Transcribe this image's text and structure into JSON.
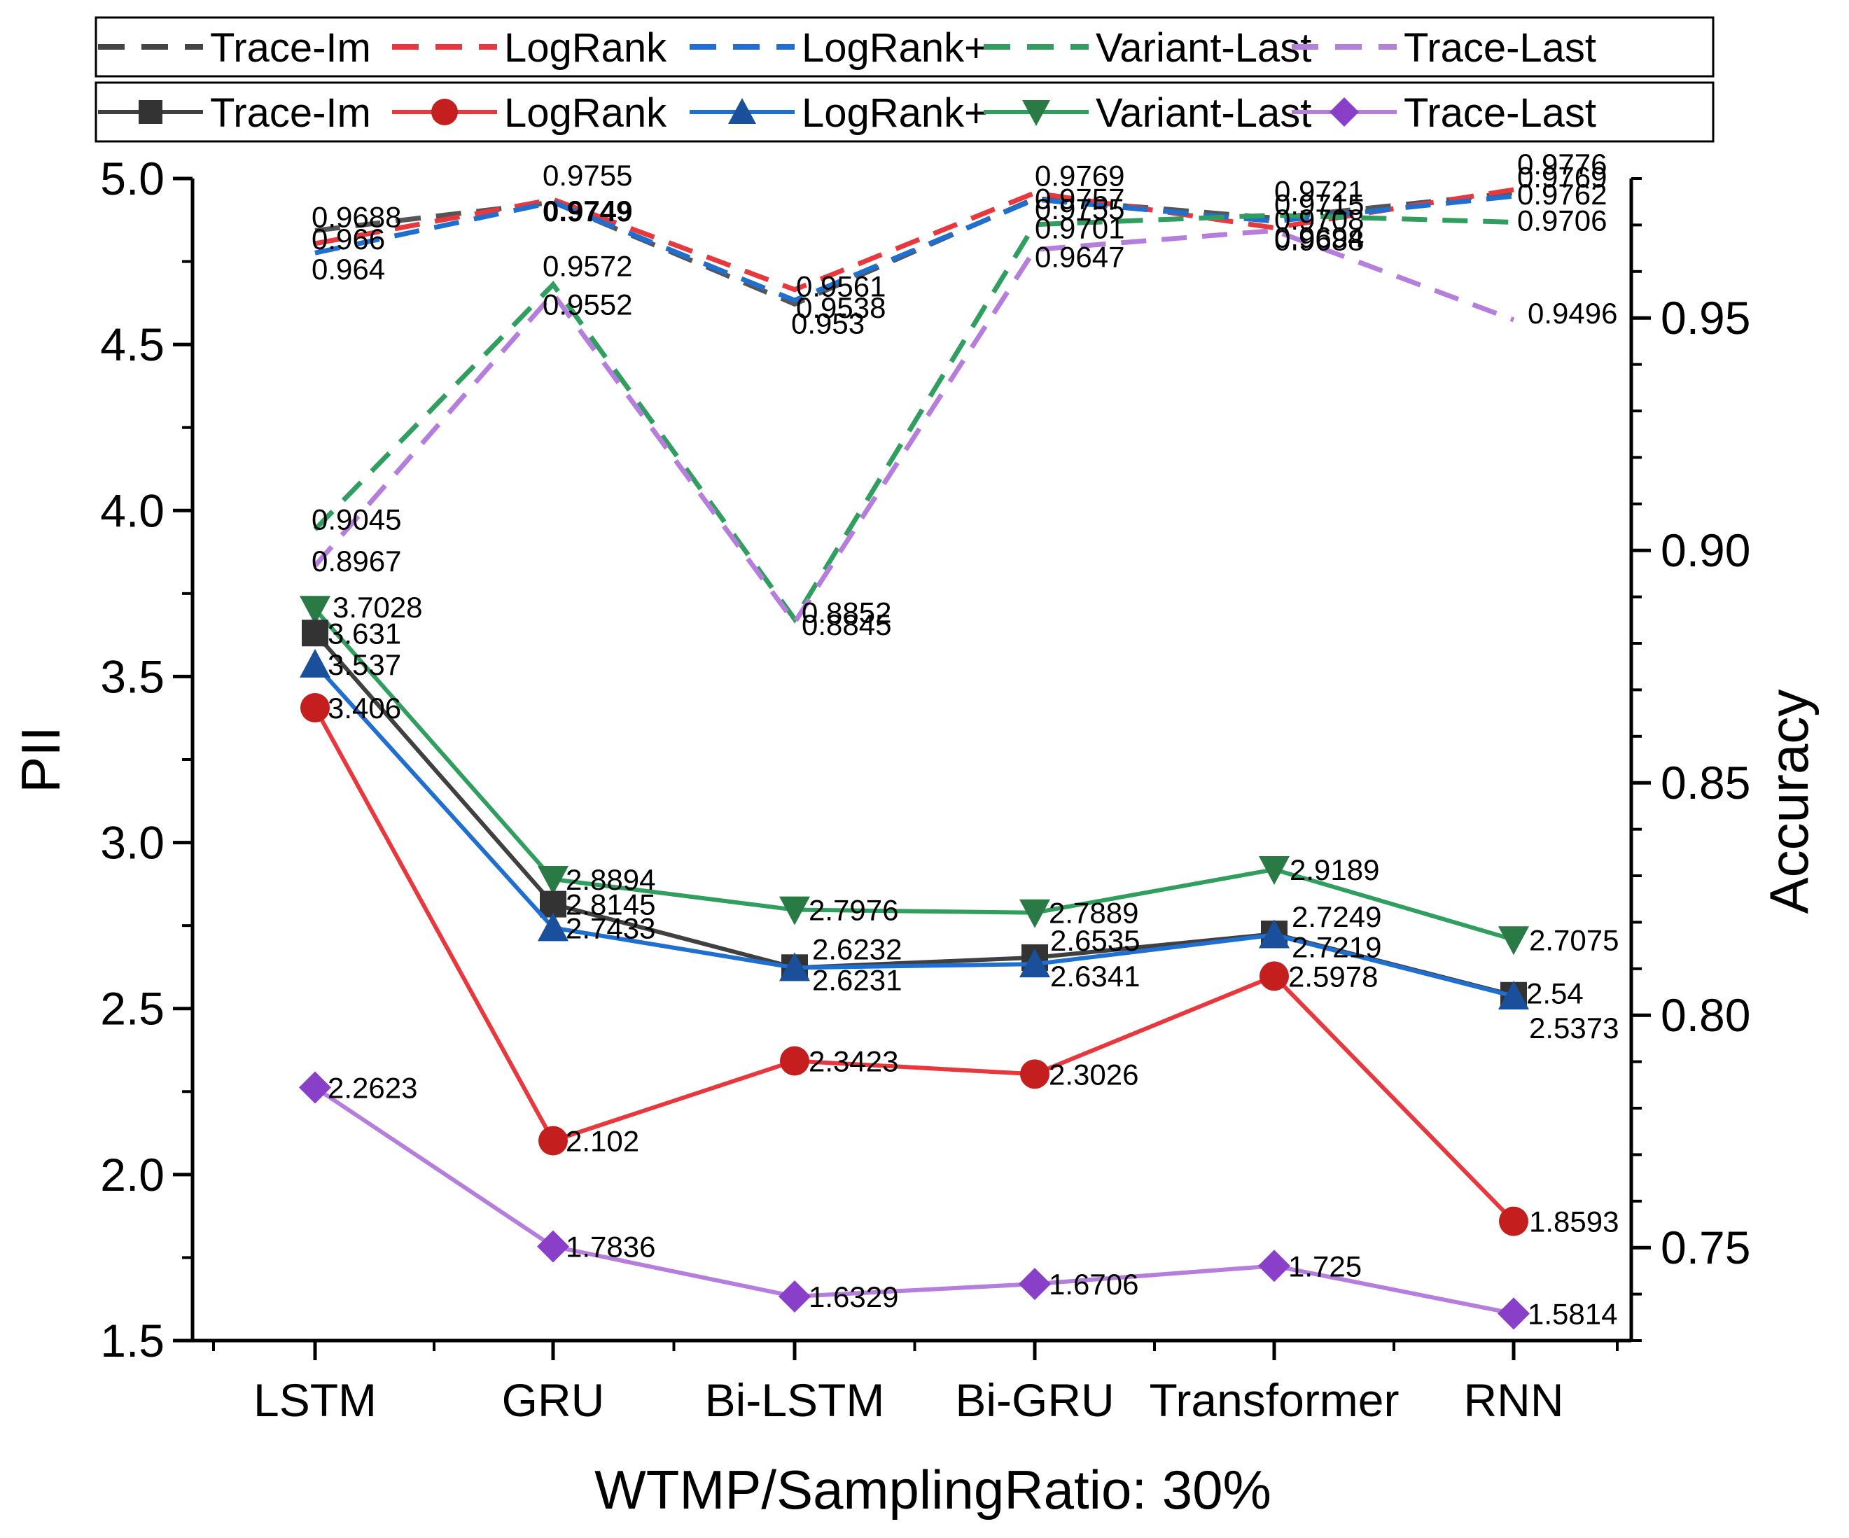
{
  "chart_data": {
    "type": "line",
    "xlabel": "WTMP/SamplingRatio: 30%",
    "ylabel": "PII",
    "y2label": "Accuracy",
    "categories": [
      "LSTM",
      "GRU",
      "Bi-LSTM",
      "Bi-GRU",
      "Transformer",
      "RNN"
    ],
    "ylim": [
      1.5,
      5.0
    ],
    "y2lim": [
      0.73,
      0.98
    ],
    "yticks": [
      "1.5",
      "2.0",
      "2.5",
      "3.0",
      "3.5",
      "4.0",
      "4.5",
      "5.0"
    ],
    "y2ticks": [
      "0.75",
      "0.80",
      "0.85",
      "0.90",
      "0.95"
    ],
    "pii_series": [
      {
        "name": "Trace-Im",
        "color": "#404040",
        "marker": "square",
        "values": [
          3.631,
          2.8145,
          2.6232,
          2.6535,
          2.7249,
          2.54
        ],
        "labels": [
          "3.631",
          "2.8145",
          "2.6232",
          "2.6535",
          "2.7249",
          "2.54"
        ]
      },
      {
        "name": "LogRank",
        "color": "#e8383d",
        "marker": "circle",
        "values": [
          3.406,
          2.102,
          2.3423,
          2.3026,
          2.5978,
          1.8593
        ],
        "labels": [
          "3.406",
          "2.102",
          "2.3423",
          "2.3026",
          "2.5978",
          "1.8593"
        ]
      },
      {
        "name": "LogRank+",
        "color": "#1f6fd1",
        "marker": "triangle-up",
        "values": [
          3.537,
          2.7433,
          2.6231,
          2.6341,
          2.7219,
          2.5373
        ],
        "labels": [
          "3.537",
          "2.7433",
          "2.6231",
          "2.6341",
          "2.7219",
          "2.5373"
        ]
      },
      {
        "name": "Variant-Last",
        "color": "#2f9e5e",
        "marker": "triangle-down",
        "values": [
          3.7028,
          2.8894,
          2.7976,
          2.7889,
          2.9189,
          2.7075
        ],
        "labels": [
          "3.7028",
          "2.8894",
          "2.7976",
          "2.7889",
          "2.9189",
          "2.7075"
        ]
      },
      {
        "name": "Trace-Last",
        "color": "#b57edc",
        "marker": "diamond",
        "values": [
          2.2623,
          1.7836,
          1.6329,
          1.6706,
          1.725,
          1.5814
        ],
        "labels": [
          "2.2623",
          "1.7836",
          "1.6329",
          "1.6706",
          "1.725",
          "1.5814"
        ]
      }
    ],
    "accuracy_series": [
      {
        "name": "Trace-Im",
        "color": "#555555",
        "values": [
          0.9688,
          0.9749,
          0.953,
          0.9757,
          0.9715,
          0.9769
        ],
        "labels": [
          "0.9688",
          "0.9749",
          "0.953",
          "0.9757",
          "0.9715",
          "0.9769"
        ]
      },
      {
        "name": "LogRank",
        "color": "#e8383d",
        "values": [
          0.966,
          0.9755,
          0.9561,
          0.9769,
          0.9694,
          0.9776
        ],
        "labels": [
          "0.966",
          "0.9755",
          "0.9561",
          "0.9769",
          "0.9694",
          "0.9776"
        ]
      },
      {
        "name": "LogRank+",
        "color": "#1f6fd1",
        "values": [
          0.964,
          0.9749,
          0.9538,
          0.9755,
          0.9708,
          0.9762
        ],
        "labels": [
          "0.964",
          "0.9749",
          "0.9538",
          "0.9755",
          "0.9708",
          "0.9762"
        ]
      },
      {
        "name": "Variant-Last",
        "color": "#2f9e5e",
        "values": [
          0.9045,
          0.9572,
          0.8852,
          0.9701,
          0.9721,
          0.9706
        ],
        "labels": [
          "0.9045",
          "0.9572",
          "0.8852",
          "0.9701",
          "0.9721",
          "0.9706"
        ]
      },
      {
        "name": "Trace-Last",
        "color": "#b57edc",
        "values": [
          0.8967,
          0.9552,
          0.8845,
          0.9647,
          0.9688,
          0.9496
        ],
        "labels": [
          "0.8967",
          "0.9552",
          "0.8845",
          "0.9647",
          "0.9688",
          "0.9496"
        ]
      }
    ],
    "legend_dashed": [
      "Trace-Im",
      "LogRank",
      "LogRank+",
      "Variant-Last",
      "Trace-Last"
    ],
    "legend_solid": [
      "Trace-Im",
      "LogRank",
      "LogRank+",
      "Variant-Last",
      "Trace-Last"
    ],
    "legend_position": "top"
  }
}
